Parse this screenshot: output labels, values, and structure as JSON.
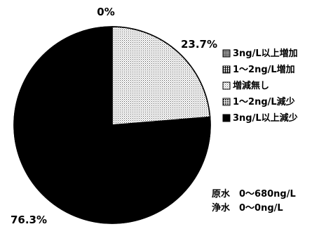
{
  "chart_data": {
    "type": "pie",
    "slices": [
      {
        "label": "3ng/L以上増加",
        "value": 0,
        "display": "0%",
        "pattern": "dense"
      },
      {
        "label": "1～2ng/L増加",
        "value": 0,
        "display": "",
        "pattern": "hatch"
      },
      {
        "label": "増減無し",
        "value": 23.7,
        "display": "23.7%",
        "pattern": "dots"
      },
      {
        "label": "1～2ng/L減少",
        "value": 0,
        "display": "",
        "pattern": "coarse"
      },
      {
        "label": "3ng/L以上減少",
        "value": 76.3,
        "display": "76.3%",
        "pattern": "solid"
      }
    ],
    "legend": {
      "position": "right",
      "entries": [
        "3ng/L以上増加",
        "1～2ng/L増加",
        "増減無し",
        "1～2ng/L減少",
        "3ng/L以上減少"
      ]
    },
    "annotations": [
      "原水　0～680ng/L",
      "浄水　0～0ng/L"
    ]
  }
}
